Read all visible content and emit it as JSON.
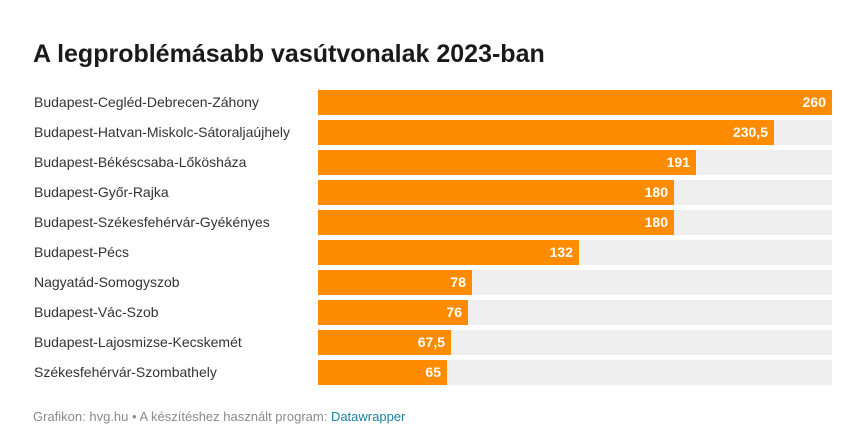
{
  "chart_data": {
    "type": "bar",
    "orientation": "horizontal",
    "title": "A legproblémásabb vasútvonalak 2023-ban",
    "categories": [
      "Budapest-Cegléd-Debrecen-Záhony",
      "Budapest-Hatvan-Miskolc-Sátoraljaújhely",
      "Budapest-Békéscsaba-Lőkösháza",
      "Budapest-Győr-Rajka",
      "Budapest-Székesfehérvár-Gyékényes",
      "Budapest-Pécs",
      "Nagyatád-Somogyszob",
      "Budapest-Vác-Szob",
      "Budapest-Lajosmizse-Kecskemét",
      "Székesfehérvár-Szombathely"
    ],
    "values": [
      260,
      230.5,
      191,
      180,
      180,
      132,
      78,
      76,
      67.5,
      65
    ],
    "value_labels": [
      "260",
      "230,5",
      "191",
      "180",
      "180",
      "132",
      "78",
      "76",
      "67,5",
      "65"
    ],
    "xlim": [
      0,
      260
    ],
    "bar_color": "#ff8c00",
    "track_color": "#efefef",
    "value_label_color": "#ffffff",
    "grid": false
  },
  "footer": {
    "source_text": "Grafikon: hvg.hu • A készítéshez használt program: ",
    "tool_link": "Datawrapper"
  },
  "colors": {
    "title": "#1a1a1a",
    "label": "#333333",
    "footer": "#8a8a8a",
    "link": "#1d81a2"
  }
}
